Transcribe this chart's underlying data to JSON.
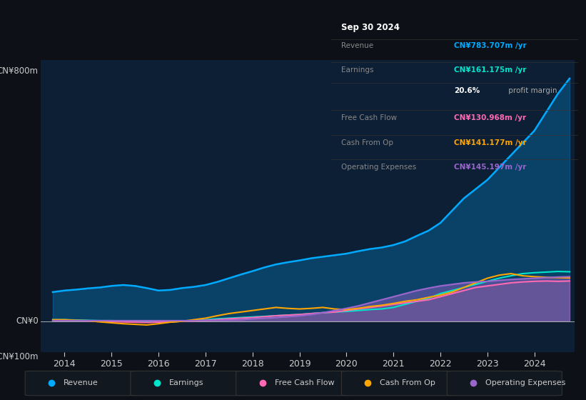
{
  "bg_color": "#0d1117",
  "plot_bg_color": "#0d1f35",
  "grid_color": "#1e3a5f",
  "text_color": "#cccccc",
  "y_label_top": "CN¥800m",
  "y_label_mid": "CN¥0",
  "y_label_bot": "-CN¥100m",
  "ylim": [
    -100,
    850
  ],
  "xlim": [
    2013.5,
    2024.85
  ],
  "x_ticks": [
    2014,
    2015,
    2016,
    2017,
    2018,
    2019,
    2020,
    2021,
    2022,
    2023,
    2024
  ],
  "colors": {
    "revenue": "#00aaff",
    "earnings": "#00e5cc",
    "free_cash_flow": "#ff69b4",
    "cash_from_op": "#ffa500",
    "operating_expenses": "#9966cc"
  },
  "series": {
    "revenue": {
      "x": [
        2013.75,
        2014.0,
        2014.25,
        2014.5,
        2014.75,
        2015.0,
        2015.25,
        2015.5,
        2015.75,
        2016.0,
        2016.25,
        2016.5,
        2016.75,
        2017.0,
        2017.25,
        2017.5,
        2017.75,
        2018.0,
        2018.25,
        2018.5,
        2018.75,
        2019.0,
        2019.25,
        2019.5,
        2019.75,
        2020.0,
        2020.25,
        2020.5,
        2020.75,
        2021.0,
        2021.25,
        2021.5,
        2021.75,
        2022.0,
        2022.25,
        2022.5,
        2022.75,
        2023.0,
        2023.25,
        2023.5,
        2023.75,
        2024.0,
        2024.25,
        2024.5,
        2024.75
      ],
      "y": [
        95,
        100,
        103,
        107,
        110,
        115,
        118,
        115,
        108,
        100,
        102,
        108,
        112,
        118,
        128,
        140,
        152,
        163,
        175,
        185,
        192,
        198,
        205,
        210,
        215,
        220,
        228,
        235,
        240,
        248,
        260,
        278,
        295,
        320,
        360,
        400,
        430,
        460,
        500,
        540,
        580,
        620,
        680,
        740,
        790
      ]
    },
    "earnings": {
      "x": [
        2013.75,
        2014.0,
        2014.25,
        2014.5,
        2014.75,
        2015.0,
        2015.25,
        2015.5,
        2015.75,
        2016.0,
        2016.25,
        2016.5,
        2016.75,
        2017.0,
        2017.25,
        2017.5,
        2017.75,
        2018.0,
        2018.25,
        2018.5,
        2018.75,
        2019.0,
        2019.25,
        2019.5,
        2019.75,
        2020.0,
        2020.25,
        2020.5,
        2020.75,
        2021.0,
        2021.25,
        2021.5,
        2021.75,
        2022.0,
        2022.25,
        2022.5,
        2022.75,
        2023.0,
        2023.25,
        2023.5,
        2023.75,
        2024.0,
        2024.25,
        2024.5,
        2024.75
      ],
      "y": [
        5,
        5,
        4,
        3,
        2,
        2,
        1,
        0,
        -2,
        -3,
        -2,
        0,
        2,
        5,
        8,
        10,
        12,
        14,
        16,
        18,
        20,
        22,
        25,
        28,
        30,
        32,
        35,
        38,
        40,
        45,
        55,
        65,
        75,
        90,
        100,
        110,
        120,
        130,
        140,
        148,
        155,
        158,
        160,
        162,
        161
      ]
    },
    "free_cash_flow": {
      "x": [
        2013.75,
        2014.0,
        2014.25,
        2014.5,
        2014.75,
        2015.0,
        2015.25,
        2015.5,
        2015.75,
        2016.0,
        2016.25,
        2016.5,
        2016.75,
        2017.0,
        2017.25,
        2017.5,
        2017.75,
        2018.0,
        2018.25,
        2018.5,
        2018.75,
        2019.0,
        2019.25,
        2019.5,
        2019.75,
        2020.0,
        2020.25,
        2020.5,
        2020.75,
        2021.0,
        2021.25,
        2021.5,
        2021.75,
        2022.0,
        2022.25,
        2022.5,
        2022.75,
        2023.0,
        2023.25,
        2023.5,
        2023.75,
        2024.0,
        2024.25,
        2024.5,
        2024.75
      ],
      "y": [
        3,
        3,
        2,
        1,
        0,
        -1,
        -2,
        -3,
        -4,
        -3,
        -2,
        0,
        1,
        3,
        5,
        8,
        10,
        12,
        15,
        18,
        20,
        22,
        25,
        28,
        30,
        35,
        40,
        45,
        50,
        55,
        60,
        65,
        70,
        80,
        90,
        100,
        110,
        115,
        120,
        125,
        128,
        130,
        131,
        130,
        131
      ]
    },
    "cash_from_op": {
      "x": [
        2013.75,
        2014.0,
        2014.25,
        2014.5,
        2014.75,
        2015.0,
        2015.25,
        2015.5,
        2015.75,
        2016.0,
        2016.25,
        2016.5,
        2016.75,
        2017.0,
        2017.25,
        2017.5,
        2017.75,
        2018.0,
        2018.25,
        2018.5,
        2018.75,
        2019.0,
        2019.25,
        2019.5,
        2019.75,
        2020.0,
        2020.25,
        2020.5,
        2020.75,
        2021.0,
        2021.25,
        2021.5,
        2021.75,
        2022.0,
        2022.25,
        2022.5,
        2022.75,
        2023.0,
        2023.25,
        2023.5,
        2023.75,
        2024.0,
        2024.25,
        2024.5,
        2024.75
      ],
      "y": [
        5,
        5,
        3,
        2,
        -2,
        -5,
        -8,
        -10,
        -12,
        -8,
        -3,
        0,
        5,
        10,
        18,
        25,
        30,
        35,
        40,
        45,
        42,
        40,
        42,
        45,
        40,
        38,
        42,
        48,
        52,
        58,
        65,
        70,
        78,
        85,
        95,
        110,
        125,
        140,
        150,
        155,
        148,
        145,
        143,
        142,
        141
      ]
    },
    "operating_expenses": {
      "x": [
        2013.75,
        2014.0,
        2014.25,
        2014.5,
        2014.75,
        2015.0,
        2015.25,
        2015.5,
        2015.75,
        2016.0,
        2016.25,
        2016.5,
        2016.75,
        2017.0,
        2017.25,
        2017.5,
        2017.75,
        2018.0,
        2018.25,
        2018.5,
        2018.75,
        2019.0,
        2019.25,
        2019.5,
        2019.75,
        2020.0,
        2020.25,
        2020.5,
        2020.75,
        2021.0,
        2021.25,
        2021.5,
        2021.75,
        2022.0,
        2022.25,
        2022.5,
        2022.75,
        2023.0,
        2023.25,
        2023.5,
        2023.75,
        2024.0,
        2024.25,
        2024.5,
        2024.75
      ],
      "y": [
        2,
        2,
        2,
        2,
        2,
        2,
        2,
        2,
        2,
        2,
        2,
        2,
        2,
        3,
        3,
        4,
        5,
        8,
        10,
        12,
        15,
        18,
        22,
        28,
        35,
        42,
        50,
        60,
        70,
        80,
        90,
        100,
        108,
        115,
        120,
        125,
        128,
        130,
        133,
        136,
        138,
        140,
        142,
        144,
        145
      ]
    }
  },
  "info_box": {
    "title": "Sep 30 2024",
    "rows": [
      {
        "label": "Revenue",
        "value": "CN¥783.707m /yr",
        "value_color": "#00aaff"
      },
      {
        "label": "Earnings",
        "value": "CN¥161.175m /yr",
        "value_color": "#00e5cc"
      },
      {
        "label": "",
        "value": "20.6% profit margin",
        "value_color": "#ffffff",
        "bold_part": "20.6%"
      },
      {
        "label": "Free Cash Flow",
        "value": "CN¥130.968m /yr",
        "value_color": "#ff69b4"
      },
      {
        "label": "Cash From Op",
        "value": "CN¥141.177m /yr",
        "value_color": "#ffa500"
      },
      {
        "label": "Operating Expenses",
        "value": "CN¥145.197m /yr",
        "value_color": "#9966cc"
      }
    ]
  },
  "legend": [
    {
      "label": "Revenue",
      "color": "#00aaff"
    },
    {
      "label": "Earnings",
      "color": "#00e5cc"
    },
    {
      "label": "Free Cash Flow",
      "color": "#ff69b4"
    },
    {
      "label": "Cash From Op",
      "color": "#ffa500"
    },
    {
      "label": "Operating Expenses",
      "color": "#9966cc"
    }
  ]
}
